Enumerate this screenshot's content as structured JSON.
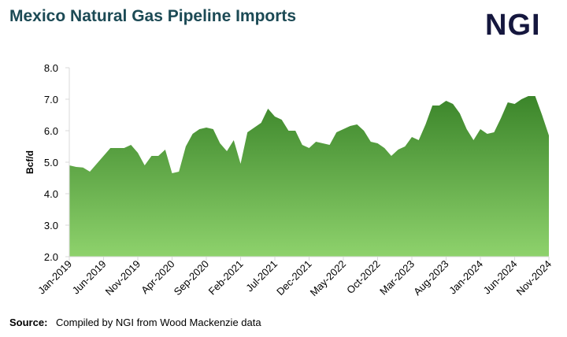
{
  "header": {
    "logo": "NGI"
  },
  "chart_data": {
    "type": "area",
    "title": "Mexico Natural Gas Pipeline Imports",
    "y_label": "Bcf/d",
    "categories": [
      "Jan-2019",
      null,
      null,
      null,
      null,
      "Jun-2019",
      null,
      null,
      null,
      null,
      "Nov-2019",
      null,
      null,
      null,
      null,
      "Apr-2020",
      null,
      null,
      null,
      null,
      "Sep-2020",
      null,
      null,
      null,
      null,
      "Feb-2021",
      null,
      null,
      null,
      null,
      "Jul-2021",
      null,
      null,
      null,
      null,
      "Dec-2021",
      null,
      null,
      null,
      null,
      "May-2022",
      null,
      null,
      null,
      null,
      "Oct-2022",
      null,
      null,
      null,
      null,
      "Mar-2023",
      null,
      null,
      null,
      null,
      "Aug-2023",
      null,
      null,
      null,
      null,
      "Jan-2024",
      null,
      null,
      null,
      null,
      "Jun-2024",
      null,
      null,
      null,
      null,
      "Nov-2024"
    ],
    "values": [
      4.9,
      4.85,
      4.83,
      4.7,
      4.95,
      5.2,
      5.45,
      5.45,
      5.45,
      5.55,
      5.3,
      4.9,
      5.2,
      5.2,
      5.4,
      4.65,
      4.7,
      5.5,
      5.9,
      6.05,
      6.1,
      6.05,
      5.6,
      5.35,
      5.7,
      4.95,
      5.95,
      6.1,
      6.25,
      6.7,
      6.45,
      6.35,
      6.0,
      6.0,
      5.55,
      5.45,
      5.65,
      5.6,
      5.55,
      5.95,
      6.05,
      6.15,
      6.2,
      6.0,
      5.65,
      5.6,
      5.45,
      5.2,
      5.4,
      5.5,
      5.8,
      5.7,
      6.2,
      6.8,
      6.8,
      6.95,
      6.85,
      6.55,
      6.05,
      5.7,
      6.05,
      5.9,
      5.95,
      6.4,
      6.9,
      6.85,
      7.0,
      7.1,
      7.1,
      6.5,
      5.85
    ],
    "colors": [
      "#3b852a",
      "#8ed26c"
    ],
    "ylim": [
      2,
      8
    ],
    "yticks": [
      {
        "value": 2,
        "label": "2.0"
      },
      {
        "value": 3,
        "label": "3.0"
      },
      {
        "value": 4,
        "label": "4.0"
      },
      {
        "value": 5,
        "label": "5.0"
      },
      {
        "value": 6,
        "label": "6.0"
      },
      {
        "value": 7,
        "label": "7.0"
      },
      {
        "value": 8,
        "label": "8.0"
      }
    ],
    "source_label": "Source:",
    "source": "Compiled by NGI from Wood Mackenzie data"
  }
}
